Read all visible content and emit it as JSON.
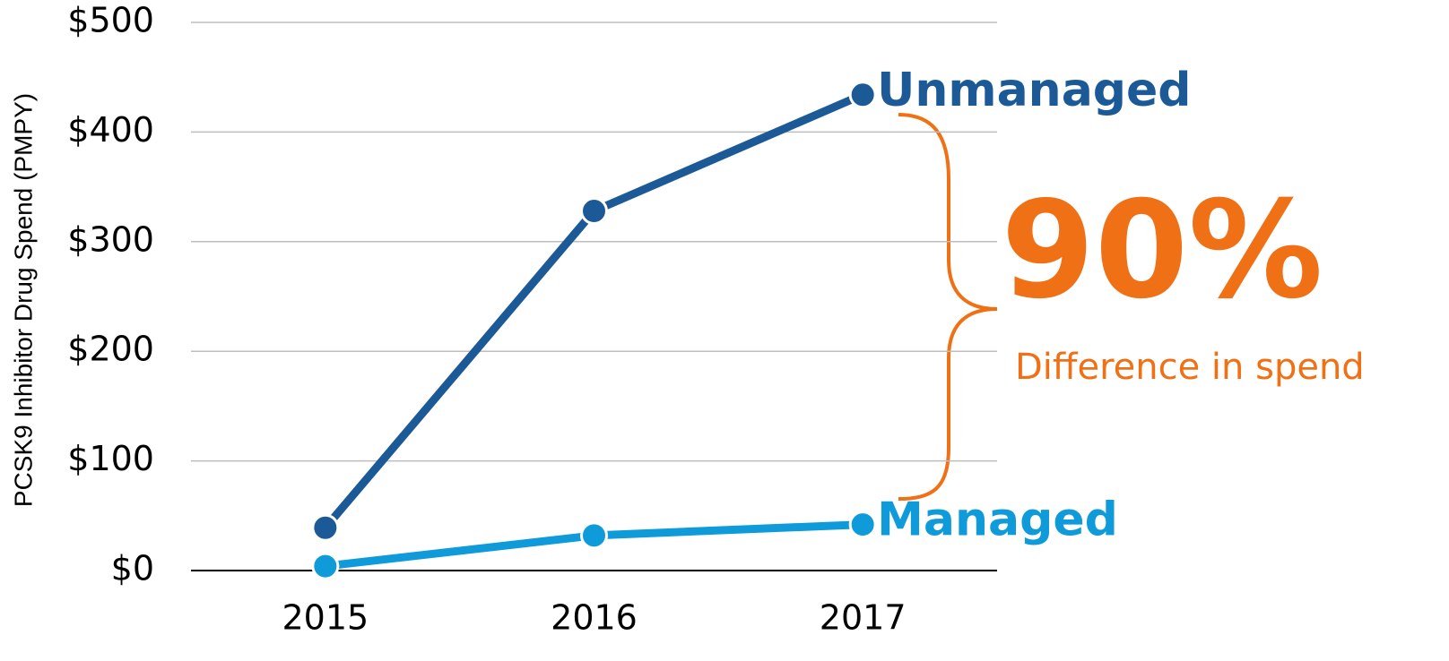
{
  "chart_data": {
    "type": "line",
    "y_label": "PCSK9 Inhibitor Drug Spend (PMPY)",
    "categories": [
      "2015",
      "2016",
      "2017"
    ],
    "series": [
      {
        "name": "Unmanaged",
        "color": "#1b5a96",
        "values": [
          39,
          328,
          434
        ]
      },
      {
        "name": "Managed",
        "color": "#0f9bd9",
        "values": [
          4,
          32,
          42
        ]
      }
    ],
    "ylim": [
      0,
      500
    ],
    "yticks": [
      {
        "value": 0,
        "label": "$0"
      },
      {
        "value": 100,
        "label": "$100"
      },
      {
        "value": 200,
        "label": "$200"
      },
      {
        "value": 300,
        "label": "$300"
      },
      {
        "value": 400,
        "label": "$400"
      },
      {
        "value": 500,
        "label": "$500"
      }
    ],
    "grid": true,
    "annotation": {
      "value_text": "90%",
      "text": "Difference in spend",
      "color": "#f07016"
    }
  }
}
